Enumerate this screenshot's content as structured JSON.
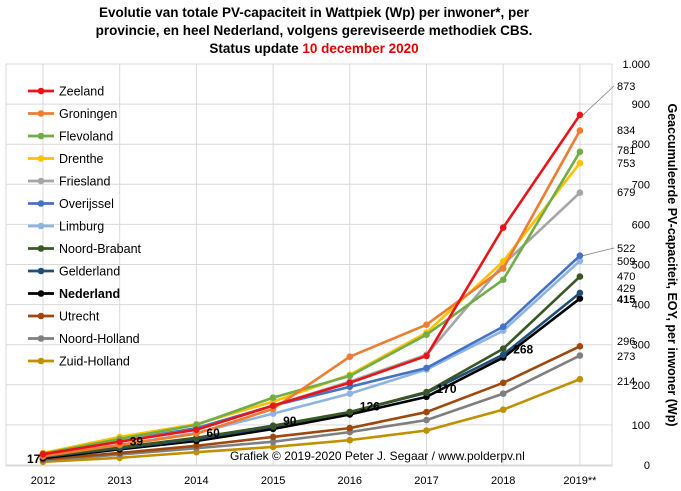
{
  "chart_data": {
    "type": "line",
    "title_lines": [
      "Evolutie van totale PV-capaciteit in Wattpiek (Wp) per inwoner*,  per",
      "provincie, en heel Nederland, volgens gereviseerde methodiek CBS."
    ],
    "status_prefix": "Status update ",
    "status_date": "10 december 2020",
    "ylabel": "Geaccumuleerde PV-capaciteit, EOY, per inwoner (Wp)",
    "credit": "Grafiek  © 2019-2020 Peter J. Segaar / www.polderpv.nl",
    "ylim": [
      0,
      1000
    ],
    "y_tick_values": [
      0,
      100,
      200,
      300,
      400,
      500,
      600,
      700,
      800,
      900,
      1000
    ],
    "y_tick_labels": [
      "0",
      "100",
      "200",
      "300",
      "400",
      "500",
      "600",
      "700",
      "800",
      "900",
      "1.000"
    ],
    "x": [
      "2012",
      "2013",
      "2014",
      "2015",
      "2016",
      "2017",
      "2018",
      "2019**"
    ],
    "grid": true,
    "legend_position": "top-left",
    "series": [
      {
        "name": "Zeeland",
        "color": "#e8141a",
        "values": [
          27,
          58,
          88,
          148,
          205,
          272,
          592,
          873
        ],
        "end_label": "873"
      },
      {
        "name": "Groningen",
        "color": "#ed7d31",
        "values": [
          22,
          50,
          78,
          140,
          270,
          350,
          490,
          834
        ],
        "end_label": "834"
      },
      {
        "name": "Flevoland",
        "color": "#70ad47",
        "values": [
          28,
          65,
          100,
          168,
          222,
          325,
          462,
          781
        ],
        "end_label": "781"
      },
      {
        "name": "Drenthe",
        "color": "#ffc000",
        "values": [
          30,
          70,
          102,
          158,
          225,
          330,
          508,
          753
        ],
        "end_label": "753"
      },
      {
        "name": "Friesland",
        "color": "#a5a5a5",
        "values": [
          26,
          60,
          88,
          148,
          208,
          275,
          500,
          679
        ],
        "end_label": "679"
      },
      {
        "name": "Overijssel",
        "color": "#4472c4",
        "values": [
          28,
          60,
          92,
          148,
          195,
          242,
          345,
          522
        ],
        "end_label": "522"
      },
      {
        "name": "Limburg",
        "color": "#8db4e2",
        "values": [
          24,
          50,
          80,
          128,
          178,
          238,
          335,
          509
        ],
        "end_label": "509"
      },
      {
        "name": "Noord-Brabant",
        "color": "#385723",
        "values": [
          22,
          44,
          68,
          98,
          132,
          182,
          290,
          470
        ],
        "end_label": "470"
      },
      {
        "name": "Gelderland",
        "color": "#1f4e79",
        "values": [
          20,
          42,
          65,
          96,
          132,
          180,
          275,
          429
        ],
        "end_label": "429"
      },
      {
        "name": "Nederland",
        "color": "#000000",
        "values": [
          17,
          39,
          60,
          90,
          126,
          170,
          268,
          415
        ],
        "end_label": "415",
        "bold": true
      },
      {
        "name": "Utrecht",
        "color": "#9e480e",
        "values": [
          14,
          30,
          48,
          70,
          92,
          132,
          205,
          296
        ],
        "end_label": "296"
      },
      {
        "name": "Noord-Holland",
        "color": "#7f7f7f",
        "values": [
          12,
          26,
          42,
          58,
          82,
          112,
          178,
          273
        ],
        "end_label": "273"
      },
      {
        "name": "Zuid-Holland",
        "color": "#bf9000",
        "values": [
          8,
          18,
          32,
          45,
          62,
          86,
          138,
          214
        ],
        "end_label": "214"
      }
    ],
    "nl_point_labels": [
      "17",
      "39",
      "60",
      "90",
      "126",
      "170",
      "268",
      "415"
    ]
  }
}
